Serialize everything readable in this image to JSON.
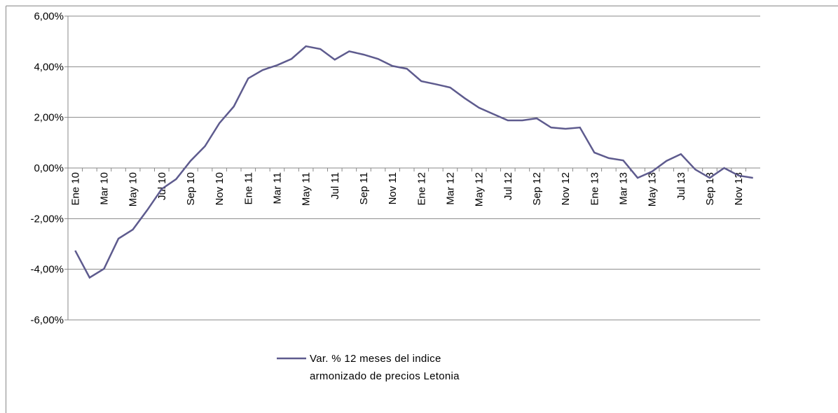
{
  "chart_data": {
    "type": "line",
    "categories": [
      "Ene 10",
      null,
      "Mar 10",
      null,
      "May 10",
      null,
      "Jul 10",
      null,
      "Sep 10",
      null,
      "Nov 10",
      null,
      "Ene 11",
      null,
      "Mar 11",
      null,
      "May 11",
      null,
      "Jul 11",
      null,
      "Sep 11",
      null,
      "Nov 11",
      null,
      "Ene 12",
      null,
      "Mar 12",
      null,
      "May 12",
      null,
      "Jul 12",
      null,
      "Sep 12",
      null,
      "Nov 12",
      null,
      "Ene 13",
      null,
      "Mar 13",
      null,
      "May 13",
      null,
      "Jul 13",
      null,
      "Sep 13",
      null,
      "Nov 13",
      null
    ],
    "series": [
      {
        "name": "Var. % 12 meses  del indice armonizado de precios Letonia",
        "color": "#5e5b8e",
        "values": [
          -3.26,
          -4.33,
          -3.98,
          -2.79,
          -2.43,
          -1.66,
          -0.83,
          -0.44,
          0.28,
          0.86,
          1.77,
          2.43,
          3.54,
          3.87,
          4.06,
          4.31,
          4.81,
          4.7,
          4.28,
          4.61,
          4.48,
          4.31,
          4.03,
          3.92,
          3.43,
          3.31,
          3.18,
          2.76,
          2.38,
          2.13,
          1.88,
          1.88,
          1.96,
          1.6,
          1.55,
          1.6,
          0.61,
          0.39,
          0.3,
          -0.39,
          -0.14,
          0.28,
          0.55,
          -0.06,
          -0.39,
          0.0,
          -0.3,
          -0.39
        ]
      }
    ],
    "ylim": [
      -6,
      6
    ],
    "yticks": [
      {
        "value": -6,
        "label": "-6,00%"
      },
      {
        "value": -4,
        "label": "-4,00%"
      },
      {
        "value": -2,
        "label": "-2,00%"
      },
      {
        "value": 0,
        "label": "0,00%"
      },
      {
        "value": 2,
        "label": "2,00%"
      },
      {
        "value": 4,
        "label": "4,00%"
      },
      {
        "value": 6,
        "label": "6,00%"
      }
    ],
    "grid": true
  }
}
